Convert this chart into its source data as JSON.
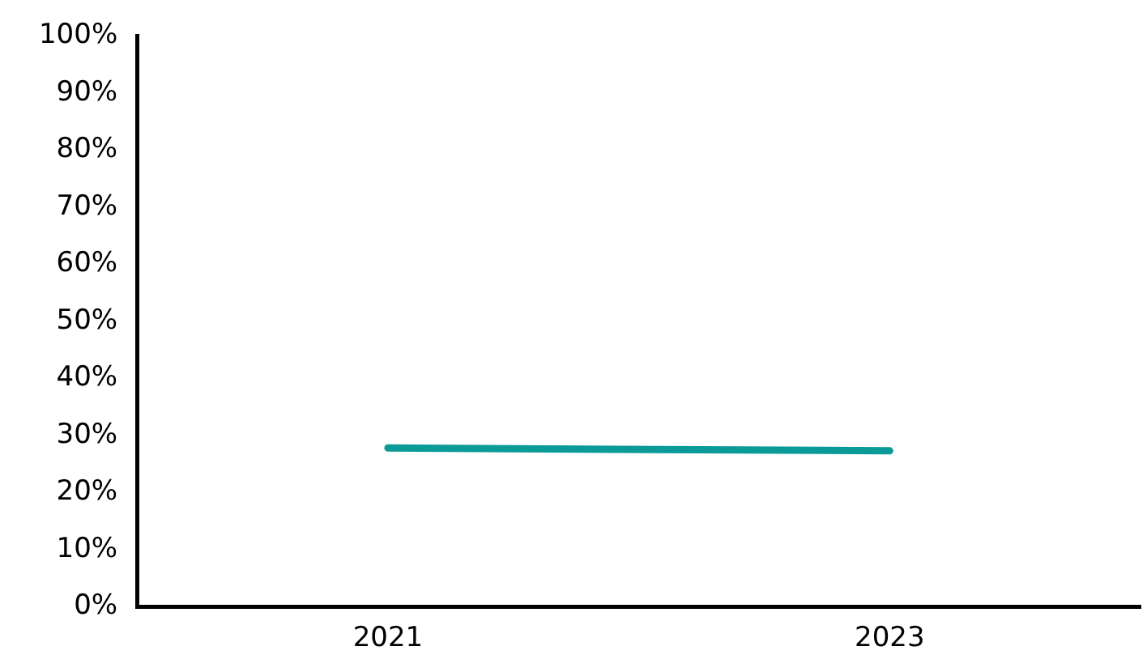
{
  "chart_data": {
    "type": "line",
    "categories": [
      "2021",
      "2023"
    ],
    "series": [
      {
        "color": "#0a9a98",
        "values": [
          27.8,
          27.3
        ]
      }
    ],
    "ylim": [
      0,
      100
    ],
    "yticks": [
      {
        "value": 0,
        "label": "0%"
      },
      {
        "value": 10,
        "label": "10%"
      },
      {
        "value": 20,
        "label": "20%"
      },
      {
        "value": 30,
        "label": "30%"
      },
      {
        "value": 40,
        "label": "40%"
      },
      {
        "value": 50,
        "label": "50%"
      },
      {
        "value": 60,
        "label": "60%"
      },
      {
        "value": 70,
        "label": "70%"
      },
      {
        "value": 80,
        "label": "80%"
      },
      {
        "value": 90,
        "label": "90%"
      },
      {
        "value": 100,
        "label": "100%"
      }
    ],
    "grid": false,
    "legend": false,
    "marker": "none",
    "line_style": "solid"
  }
}
